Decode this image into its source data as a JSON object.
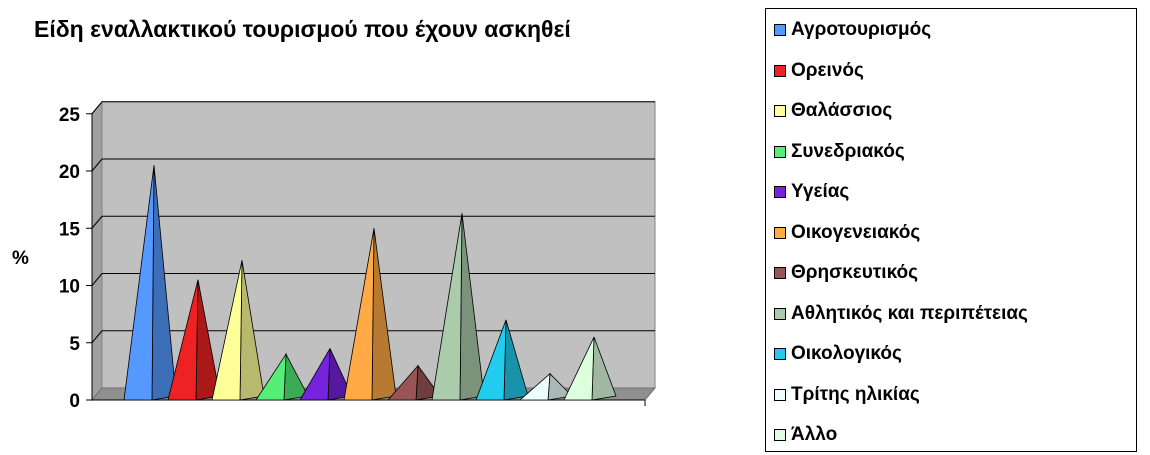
{
  "chart_data": {
    "type": "bar",
    "title": "Είδη εναλλακτικού τουρισμού που έχουν ασκηθεί",
    "xlabel": "",
    "ylabel": "%",
    "ylim": [
      0,
      25
    ],
    "yticks": [
      "0",
      "5",
      "10",
      "15",
      "20",
      "25"
    ],
    "grid": true,
    "legend_position": "right",
    "series": [
      {
        "name": "Αγροτουρισμός",
        "value": 20.5,
        "color": "#5599ff"
      },
      {
        "name": "Ορεινός",
        "value": 10.5,
        "color": "#ee2222"
      },
      {
        "name": "Θαλάσσιος",
        "value": 12.2,
        "color": "#ffff99"
      },
      {
        "name": "Συνεδριακός",
        "value": 4.0,
        "color": "#55ee77"
      },
      {
        "name": "Υγείας",
        "value": 4.5,
        "color": "#7722dd"
      },
      {
        "name": "Οικογενειακός",
        "value": 15.0,
        "color": "#ffaa44"
      },
      {
        "name": "Θρησκευτικός",
        "value": 3.0,
        "color": "#995555"
      },
      {
        "name": "Αθλητικός και περιπέτειας",
        "value": 16.3,
        "color": "#aaccaa"
      },
      {
        "name": "Οικολογικός",
        "value": 7.0,
        "color": "#22ccee"
      },
      {
        "name": "Τρίτης ηλικίας",
        "value": 2.3,
        "color": "#eeffff"
      },
      {
        "name": "Άλλο",
        "value": 5.5,
        "color": "#ddffdd"
      }
    ]
  }
}
